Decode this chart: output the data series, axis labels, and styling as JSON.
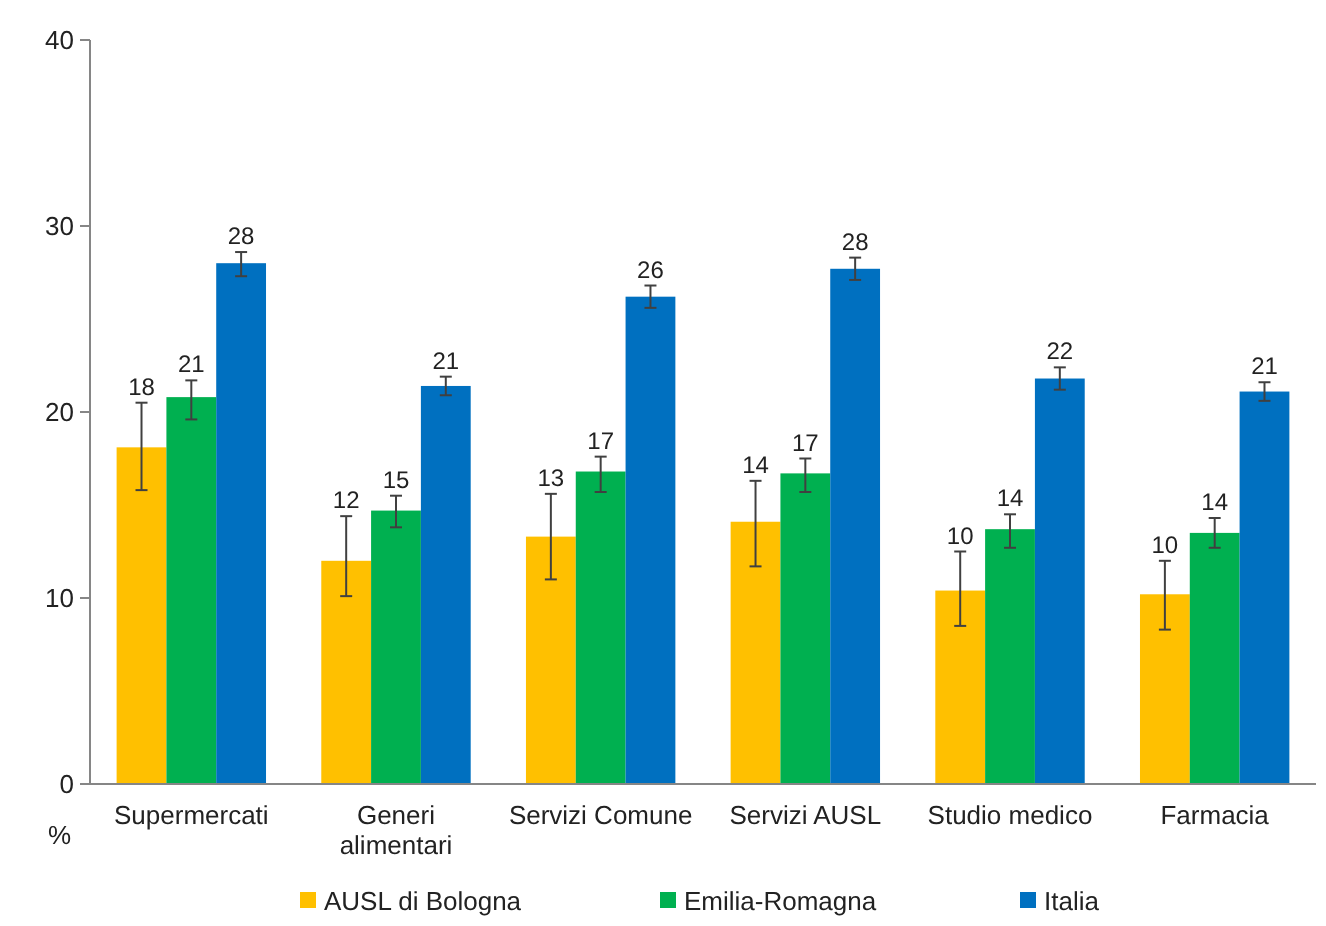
{
  "chart_data": {
    "type": "bar",
    "ylabel": "%",
    "categories": [
      "Supermercati",
      "Generi alimentari",
      "Servizi Comune",
      "Servizi AUSL",
      "Studio medico",
      "Farmacia"
    ],
    "series": [
      {
        "name": "AUSL di Bologna",
        "color": "#ffc000",
        "values": [
          18.1,
          12.0,
          13.3,
          14.1,
          10.4,
          10.2
        ],
        "errors": [
          [
            15.8,
            20.5
          ],
          [
            10.1,
            14.4
          ],
          [
            11.0,
            15.6
          ],
          [
            11.7,
            16.3
          ],
          [
            8.5,
            12.5
          ],
          [
            8.3,
            12.0
          ]
        ],
        "value_labels": [
          "18",
          "12",
          "13",
          "14",
          "10",
          "10"
        ]
      },
      {
        "name": "Emilia-Romagna",
        "color": "#00b050",
        "values": [
          20.8,
          14.7,
          16.8,
          16.7,
          13.7,
          13.5
        ],
        "errors": [
          [
            19.6,
            21.7
          ],
          [
            13.8,
            15.5
          ],
          [
            15.7,
            17.6
          ],
          [
            15.7,
            17.5
          ],
          [
            12.7,
            14.5
          ],
          [
            12.7,
            14.3
          ]
        ],
        "value_labels": [
          "21",
          "15",
          "17",
          "17",
          "14",
          "14"
        ]
      },
      {
        "name": "Italia",
        "color": "#0070c0",
        "values": [
          28.0,
          21.4,
          26.2,
          27.7,
          21.8,
          21.1
        ],
        "errors": [
          [
            27.3,
            28.6
          ],
          [
            20.9,
            21.9
          ],
          [
            25.6,
            26.8
          ],
          [
            27.1,
            28.3
          ],
          [
            21.2,
            22.4
          ],
          [
            20.6,
            21.6
          ]
        ],
        "value_labels": [
          "28",
          "21",
          "26",
          "28",
          "22",
          "21"
        ]
      }
    ],
    "ylim": [
      0,
      40
    ],
    "yticks": [
      0,
      10,
      20,
      30,
      40
    ],
    "grid": false,
    "legend": "bottom"
  }
}
